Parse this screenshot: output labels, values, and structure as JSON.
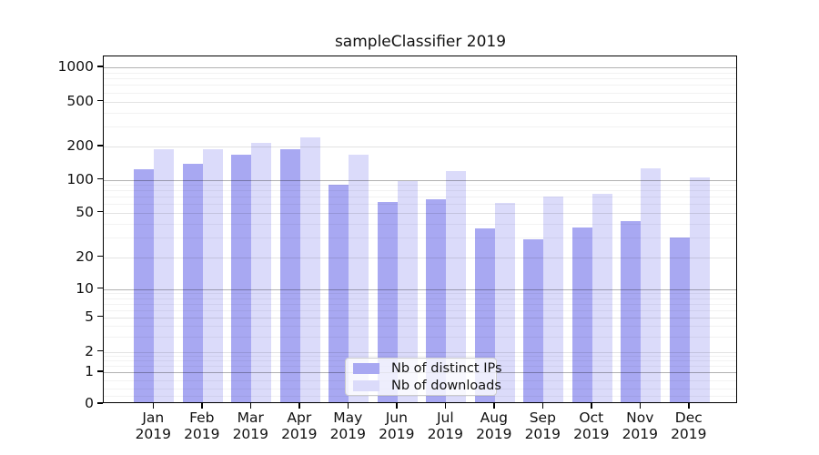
{
  "chart_data": {
    "type": "bar",
    "title": "sampleClassifier 2019",
    "categories": [
      "Jan 2019",
      "Feb 2019",
      "Mar 2019",
      "Apr 2019",
      "May 2019",
      "Jun 2019",
      "Jul 2019",
      "Aug 2019",
      "Sep 2019",
      "Oct 2019",
      "Nov 2019",
      "Dec 2019"
    ],
    "series": [
      {
        "name": "Nb of distinct IPs",
        "color": "#a8a8f2",
        "values": [
          125,
          140,
          170,
          190,
          90,
          63,
          66,
          36,
          29,
          37,
          42,
          30
        ]
      },
      {
        "name": "Nb of downloads",
        "color": "#dbdbfa",
        "values": [
          190,
          190,
          215,
          240,
          170,
          97,
          120,
          62,
          70,
          74,
          128,
          106
        ]
      }
    ],
    "xlabel": "",
    "ylabel": "",
    "yscale": "symlog",
    "yticks": [
      0,
      1,
      2,
      5,
      10,
      20,
      50,
      100,
      200,
      500,
      1000
    ],
    "ylim": [
      0,
      1250
    ],
    "grid": true,
    "legend_position": "lower center"
  }
}
